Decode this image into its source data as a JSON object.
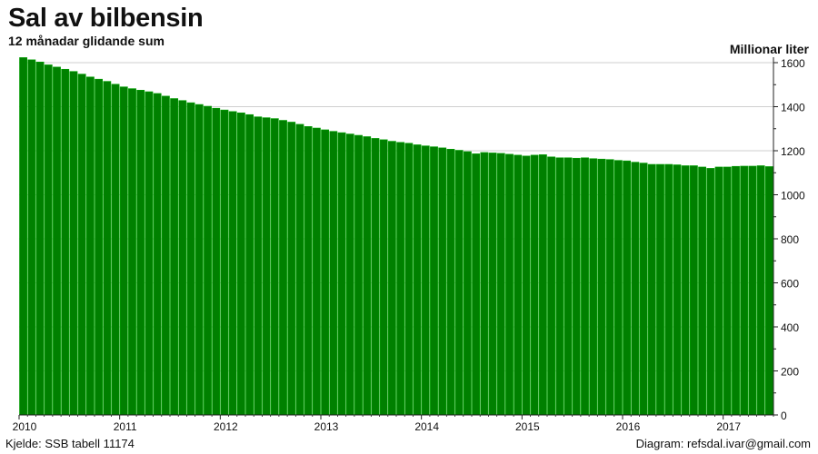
{
  "chart_data": {
    "type": "bar",
    "title": "Sal av bilbensin",
    "subtitle": "12 månadar glidande sum",
    "ylabel": "Millionar liter",
    "xlabel": "",
    "ylim": [
      0,
      1600
    ],
    "yticks": [
      0,
      200,
      400,
      600,
      800,
      1000,
      1200,
      1400,
      1600
    ],
    "x_start": "2010-01",
    "x_ticks": [
      "2010",
      "2011",
      "2012",
      "2013",
      "2014",
      "2015",
      "2016",
      "2017"
    ],
    "grid": true,
    "bar_color": "#008000",
    "bar_edge_color": "#00a000",
    "values": [
      1623,
      1613,
      1603,
      1590,
      1580,
      1570,
      1560,
      1548,
      1535,
      1525,
      1515,
      1502,
      1490,
      1482,
      1475,
      1468,
      1460,
      1448,
      1437,
      1428,
      1418,
      1410,
      1402,
      1393,
      1385,
      1378,
      1372,
      1364,
      1354,
      1350,
      1346,
      1338,
      1330,
      1320,
      1310,
      1303,
      1295,
      1288,
      1282,
      1276,
      1270,
      1264,
      1256,
      1250,
      1243,
      1238,
      1234,
      1227,
      1222,
      1218,
      1213,
      1207,
      1202,
      1196,
      1186,
      1192,
      1190,
      1188,
      1184,
      1180,
      1176,
      1180,
      1182,
      1172,
      1168,
      1168,
      1166,
      1168,
      1164,
      1162,
      1160,
      1156,
      1154,
      1148,
      1144,
      1138,
      1138,
      1138,
      1136,
      1132,
      1132,
      1126,
      1120,
      1126,
      1126,
      1129,
      1130,
      1130,
      1132,
      1128
    ]
  },
  "footer": {
    "source": "Kjelde: SSB tabell 11174",
    "credit": "Diagram: refsdal.ivar@gmail.com"
  }
}
